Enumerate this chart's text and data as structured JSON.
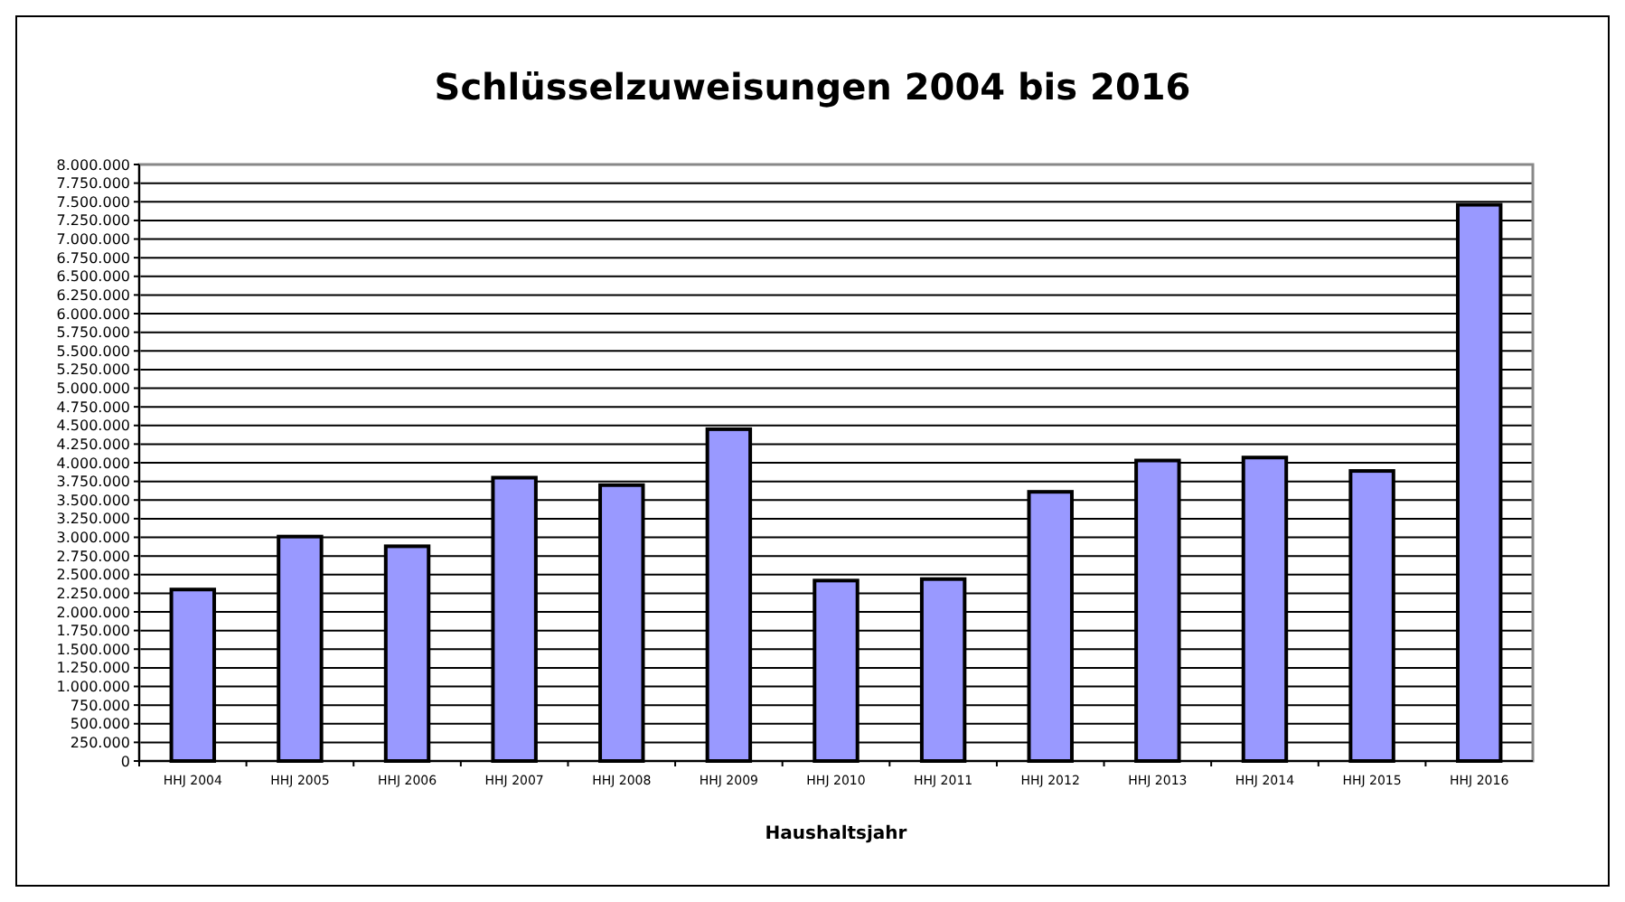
{
  "chart_data": {
    "type": "bar",
    "title": "Schlüsselzuweisungen 2004 bis 2016",
    "xlabel": "Haushaltsjahr",
    "categories": [
      "HHJ 2004",
      "HHJ 2005",
      "HHJ 2006",
      "HHJ 2007",
      "HHJ 2008",
      "HHJ 2009",
      "HHJ 2010",
      "HHJ 2011",
      "HHJ 2012",
      "HHJ 2013",
      "HHJ 2014",
      "HHJ 2015",
      "HHJ 2016"
    ],
    "values": [
      2300000,
      3010000,
      2880000,
      3800000,
      3700000,
      4450000,
      2420000,
      2440000,
      3610000,
      4030000,
      4070000,
      3890000,
      7460000
    ],
    "color": "#9999ff",
    "ylim": [
      0,
      8000000
    ],
    "yticks": [
      {
        "value": 0,
        "label": "0"
      },
      {
        "value": 250000,
        "label": "250.000"
      },
      {
        "value": 500000,
        "label": "500.000"
      },
      {
        "value": 750000,
        "label": "750.000"
      },
      {
        "value": 1000000,
        "label": "1.000.000"
      },
      {
        "value": 1250000,
        "label": "1.250.000"
      },
      {
        "value": 1500000,
        "label": "1.500.000"
      },
      {
        "value": 1750000,
        "label": "1.750.000"
      },
      {
        "value": 2000000,
        "label": "2.000.000"
      },
      {
        "value": 2250000,
        "label": "2.250.000"
      },
      {
        "value": 2500000,
        "label": "2.500.000"
      },
      {
        "value": 2750000,
        "label": "2.750.000"
      },
      {
        "value": 3000000,
        "label": "3.000.000"
      },
      {
        "value": 3250000,
        "label": "3.250.000"
      },
      {
        "value": 3500000,
        "label": "3.500.000"
      },
      {
        "value": 3750000,
        "label": "3.750.000"
      },
      {
        "value": 4000000,
        "label": "4.000.000"
      },
      {
        "value": 4250000,
        "label": "4.250.000"
      },
      {
        "value": 4500000,
        "label": "4.500.000"
      },
      {
        "value": 4750000,
        "label": "4.750.000"
      },
      {
        "value": 5000000,
        "label": "5.000.000"
      },
      {
        "value": 5250000,
        "label": "5.250.000"
      },
      {
        "value": 5500000,
        "label": "5.500.000"
      },
      {
        "value": 5750000,
        "label": "5.750.000"
      },
      {
        "value": 6000000,
        "label": "6.000.000"
      },
      {
        "value": 6250000,
        "label": "6.250.000"
      },
      {
        "value": 6500000,
        "label": "6.500.000"
      },
      {
        "value": 6750000,
        "label": "6.750.000"
      },
      {
        "value": 7000000,
        "label": "7.000.000"
      },
      {
        "value": 7250000,
        "label": "7.250.000"
      },
      {
        "value": 7500000,
        "label": "7.500.000"
      },
      {
        "value": 7750000,
        "label": "7.750.000"
      },
      {
        "value": 8000000,
        "label": "8.000.000"
      }
    ],
    "grid": "y"
  }
}
